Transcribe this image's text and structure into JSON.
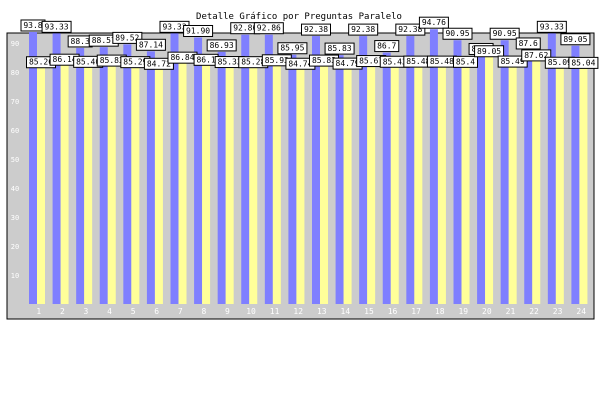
{
  "chart_data": {
    "type": "bar",
    "title": "Detalle Gráfico por Preguntas Paralelo",
    "xlabel": "",
    "ylabel": "",
    "ylim": [
      0,
      100
    ],
    "y_ticks": [
      "10",
      "20",
      "30",
      "40",
      "50",
      "60",
      "70",
      "80",
      "90"
    ],
    "categories": [
      "1",
      "2",
      "3",
      "4",
      "5",
      "6",
      "7",
      "8",
      "9",
      "10",
      "11",
      "12",
      "13",
      "14",
      "15",
      "16",
      "17",
      "18",
      "19",
      "20",
      "21",
      "22",
      "23",
      "24"
    ],
    "series": [
      {
        "values": [
          93.8,
          93.33,
          88.3,
          88.57,
          89.52,
          87.14,
          93.33,
          91.9,
          86.93,
          92.86,
          92.86,
          85.95,
          92.38,
          85.83,
          92.38,
          86.7,
          92.38,
          94.76,
          90.95,
          85.7,
          90.95,
          87.6,
          93.33,
          89.05
        ],
        "labels": [
          "93.8",
          "93.33",
          "88.3",
          "88.57",
          "89.52",
          "87.14",
          "93.33",
          "91.90",
          "86.93",
          "92.86",
          "92.86",
          "85.95",
          "92.38",
          "85.83",
          "92.38",
          "86.7",
          "92.38",
          "94.76",
          "90.95",
          "85.7",
          "90.95",
          "87.6",
          "93.33",
          "89.05"
        ]
      },
      {
        "values": [
          85.26,
          86.14,
          85.4,
          85.83,
          85.29,
          84.72,
          86.84,
          86.1,
          85.33,
          85.28,
          85.93,
          84.74,
          85.83,
          84.79,
          85.67,
          85.43,
          85.48,
          85.48,
          85.4,
          89.05,
          85.49,
          87.62,
          85.09,
          85.04
        ],
        "labels": [
          "85.26",
          "86.14",
          "85.40",
          "85.83",
          "85.29",
          "84.72",
          "86.84",
          "86.1",
          "85.33",
          "85.28",
          "85.93",
          "84.74",
          "85.83",
          "84.79",
          "85.67",
          "85.43",
          "85.48",
          "85.48",
          "85.4",
          "89.05",
          "85.49",
          "87.62",
          "85.09",
          "85.04"
        ]
      }
    ],
    "colors": {
      "series_1": "#7f7fff",
      "series_2": "#ffff99",
      "plot_background": "#cccccc",
      "frame": "#000000",
      "label_box": "#ffffff"
    },
    "grid": false,
    "legend": "none"
  }
}
